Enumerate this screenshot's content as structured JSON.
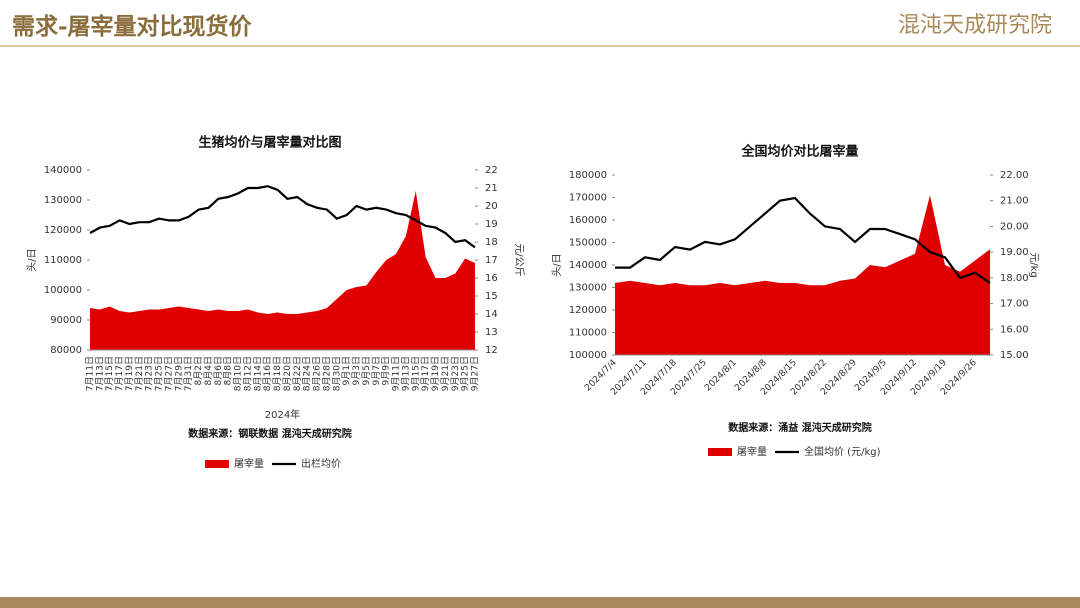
{
  "header": {
    "title": "需求-屠宰量对比现货价",
    "logo": "混沌天成研究院"
  },
  "chart_data": [
    {
      "type": "combo",
      "title": "生猪均价与屠宰量对比图",
      "categories": [
        "7月11日",
        "7月13日",
        "7月15日",
        "7月17日",
        "7月19日",
        "7月21日",
        "7月23日",
        "7月25日",
        "7月27日",
        "7月29日",
        "7月31日",
        "8月2日",
        "8月4日",
        "8月6日",
        "8月8日",
        "8月10日",
        "8月12日",
        "8月14日",
        "8月16日",
        "8月18日",
        "8月20日",
        "8月22日",
        "8月24日",
        "8月26日",
        "8月28日",
        "8月30日",
        "9月1日",
        "9月3日",
        "9月5日",
        "9月7日",
        "9月9日",
        "9月11日",
        "9月13日",
        "9月15日",
        "9月17日",
        "9月19日",
        "9月21日",
        "9月23日",
        "9月25日",
        "9月27日"
      ],
      "series": [
        {
          "name": "屠宰量",
          "type": "area",
          "color": "#e00000",
          "values": [
            94000,
            93500,
            94500,
            93000,
            92500,
            93000,
            93500,
            93500,
            94000,
            94500,
            94000,
            93500,
            93000,
            93500,
            93000,
            93000,
            93500,
            92500,
            92000,
            92500,
            92000,
            92000,
            92500,
            93000,
            94000,
            97000,
            100000,
            101000,
            101500,
            106000,
            110000,
            112000,
            118000,
            133000,
            111000,
            104000,
            104000,
            105500,
            110500,
            109000
          ]
        },
        {
          "name": "出栏均价",
          "type": "line",
          "axis": "y2",
          "color": "#000000",
          "values": [
            18.5,
            18.8,
            18.9,
            19.2,
            19.0,
            19.1,
            19.1,
            19.3,
            19.2,
            19.2,
            19.4,
            19.8,
            19.9,
            20.4,
            20.5,
            20.7,
            21.0,
            21.0,
            21.1,
            20.9,
            20.4,
            20.5,
            20.1,
            19.9,
            19.8,
            19.3,
            19.5,
            20.0,
            19.8,
            19.9,
            19.8,
            19.6,
            19.5,
            19.2,
            18.9,
            18.8,
            18.5,
            18.0,
            18.1,
            17.7
          ]
        }
      ],
      "ylim": [
        80000,
        140000
      ],
      "yticks": [
        80000,
        90000,
        100000,
        110000,
        120000,
        130000,
        140000
      ],
      "y2lim": [
        12,
        22
      ],
      "y2ticks": [
        12,
        13,
        14,
        15,
        16,
        17,
        18,
        19,
        20,
        21,
        22
      ],
      "ylabel": "头/日",
      "y2label": "元/公斤",
      "xlabel": "2024年",
      "source": "数据来源：钢联数据 混沌天成研究院",
      "legend": "bottom"
    },
    {
      "type": "combo",
      "title": "全国均价对比屠宰量",
      "categories": [
        "2024/7/4",
        null,
        "2024/7/11",
        null,
        "2024/7/18",
        null,
        "2024/7/25",
        null,
        "2024/8/1",
        null,
        "2024/8/8",
        null,
        "2024/8/15",
        null,
        "2024/8/22",
        null,
        "2024/8/29",
        null,
        "2024/9/5",
        null,
        "2024/9/12",
        null,
        "2024/9/19",
        null,
        "2024/9/26",
        null
      ],
      "series": [
        {
          "name": "屠宰量",
          "type": "area",
          "color": "#e00000",
          "values": [
            132000,
            133000,
            132000,
            131000,
            132000,
            131000,
            131000,
            132000,
            131000,
            132000,
            133000,
            132000,
            132000,
            131000,
            131000,
            133000,
            134000,
            140000,
            139000,
            142000,
            145000,
            171000,
            140000,
            137000,
            142000,
            147000
          ]
        },
        {
          "name": "全国均价 (元/kg)",
          "type": "line",
          "axis": "y2",
          "color": "#000000",
          "values": [
            18.4,
            18.4,
            18.8,
            18.7,
            19.2,
            19.1,
            19.4,
            19.3,
            19.5,
            20.0,
            20.5,
            21.0,
            21.1,
            20.5,
            20.0,
            19.9,
            19.4,
            19.9,
            19.9,
            19.7,
            19.5,
            19.0,
            18.8,
            18.0,
            18.2,
            17.8
          ]
        }
      ],
      "ylim": [
        100000,
        180000
      ],
      "yticks": [
        100000,
        110000,
        120000,
        130000,
        140000,
        150000,
        160000,
        170000,
        180000
      ],
      "y2lim": [
        15,
        22
      ],
      "y2ticks": [
        {
          "value": 15,
          "label": "15.00"
        },
        {
          "value": 16,
          "label": "16.00"
        },
        {
          "value": 17,
          "label": "17.00"
        },
        {
          "value": 18,
          "label": "18.00"
        },
        {
          "value": 19,
          "label": "19.00"
        },
        {
          "value": 20,
          "label": "20.00"
        },
        {
          "value": 21,
          "label": "21.00"
        },
        {
          "value": 22,
          "label": "22.00"
        }
      ],
      "ylabel": "头/日",
      "y2label": "元/kg",
      "source": "数据来源：涌益 混沌天成研究院",
      "legend": "bottom"
    }
  ]
}
